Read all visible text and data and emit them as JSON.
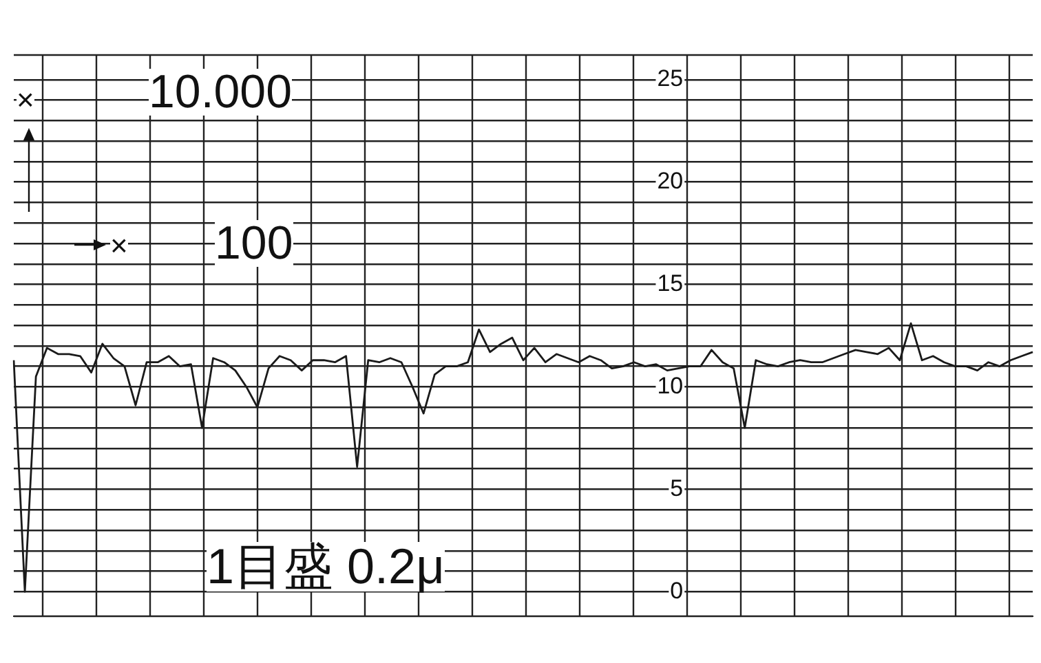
{
  "chart_data": {
    "type": "line",
    "annotations": [
      "×",
      "10.000",
      "×",
      "100",
      "1目盛 0.2μ"
    ],
    "categories": [
      null,
      null,
      null,
      null,
      null,
      null,
      null,
      null,
      null,
      null,
      null,
      null,
      null,
      null,
      null,
      null,
      null,
      null,
      null,
      null,
      null,
      null,
      null,
      null,
      null,
      null,
      null,
      null,
      null,
      null,
      null,
      null,
      null,
      null,
      null,
      null,
      null,
      null,
      null,
      null,
      null,
      null,
      null,
      null,
      null,
      null,
      null,
      null,
      null,
      null,
      null,
      null,
      null,
      null,
      null,
      null,
      null,
      null,
      null,
      null,
      null,
      null,
      null,
      null,
      null,
      null,
      null,
      null,
      null,
      null,
      null,
      null,
      null,
      null,
      null,
      null,
      null,
      null,
      null,
      null,
      null,
      null,
      null,
      null,
      null,
      null,
      null,
      null,
      null,
      null,
      null,
      null,
      null
    ],
    "series": [
      {
        "color": "#1a1a1a",
        "values": [
          11.3,
          0,
          10.5,
          11.9,
          11.6,
          11.6,
          11.5,
          10.7,
          12.1,
          11.4,
          11.0,
          9.1,
          11.2,
          11.2,
          11.5,
          11.0,
          11.1,
          8.0,
          11.4,
          11.2,
          10.8,
          10.0,
          9.0,
          10.9,
          11.5,
          11.3,
          10.8,
          11.3,
          11.3,
          11.2,
          11.5,
          6.1,
          11.3,
          11.2,
          11.4,
          11.2,
          10.0,
          8.7,
          10.6,
          11.0,
          11.0,
          11.2,
          12.8,
          11.7,
          12.1,
          12.4,
          11.3,
          11.9,
          11.2,
          11.6,
          11.4,
          11.2,
          11.5,
          11.3,
          10.9,
          11.0,
          11.2,
          11.0,
          11.1,
          10.8,
          10.9,
          11.0,
          11.0,
          11.8,
          11.2,
          10.9,
          8.0,
          11.3,
          11.1,
          11.0,
          11.2,
          11.3,
          11.2,
          11.2,
          11.4,
          11.6,
          11.8,
          11.7,
          11.6,
          11.9,
          11.3,
          13.1,
          11.3,
          11.5,
          11.2,
          11.0,
          11.0,
          10.8,
          11.2,
          11.0,
          11.3,
          11.5,
          11.7
        ]
      }
    ],
    "ylim": [
      -1.2,
      26.2
    ],
    "yticks": [
      0,
      {
        "value": 1,
        "label": null
      },
      {
        "value": 2,
        "label": null
      },
      {
        "value": 3,
        "label": null
      },
      {
        "value": 4,
        "label": null
      },
      5,
      {
        "value": 6,
        "label": null
      },
      {
        "value": 7,
        "label": null
      },
      {
        "value": 8,
        "label": null
      },
      {
        "value": 9,
        "label": null
      },
      10,
      {
        "value": 11,
        "label": null
      },
      {
        "value": 12,
        "label": null
      },
      {
        "value": 13,
        "label": null
      },
      {
        "value": 14,
        "label": null
      },
      15,
      {
        "value": 16,
        "label": null
      },
      {
        "value": 17,
        "label": null
      },
      {
        "value": 18,
        "label": null
      },
      {
        "value": 19,
        "label": null
      },
      20,
      {
        "value": 21,
        "label": null
      },
      {
        "value": 22,
        "label": null
      },
      {
        "value": 23,
        "label": null
      },
      {
        "value": 24,
        "label": null
      },
      25
    ],
    "tick_labels": "y",
    "grid": true,
    "legend": false,
    "marker": "none",
    "line_style": "solid"
  }
}
